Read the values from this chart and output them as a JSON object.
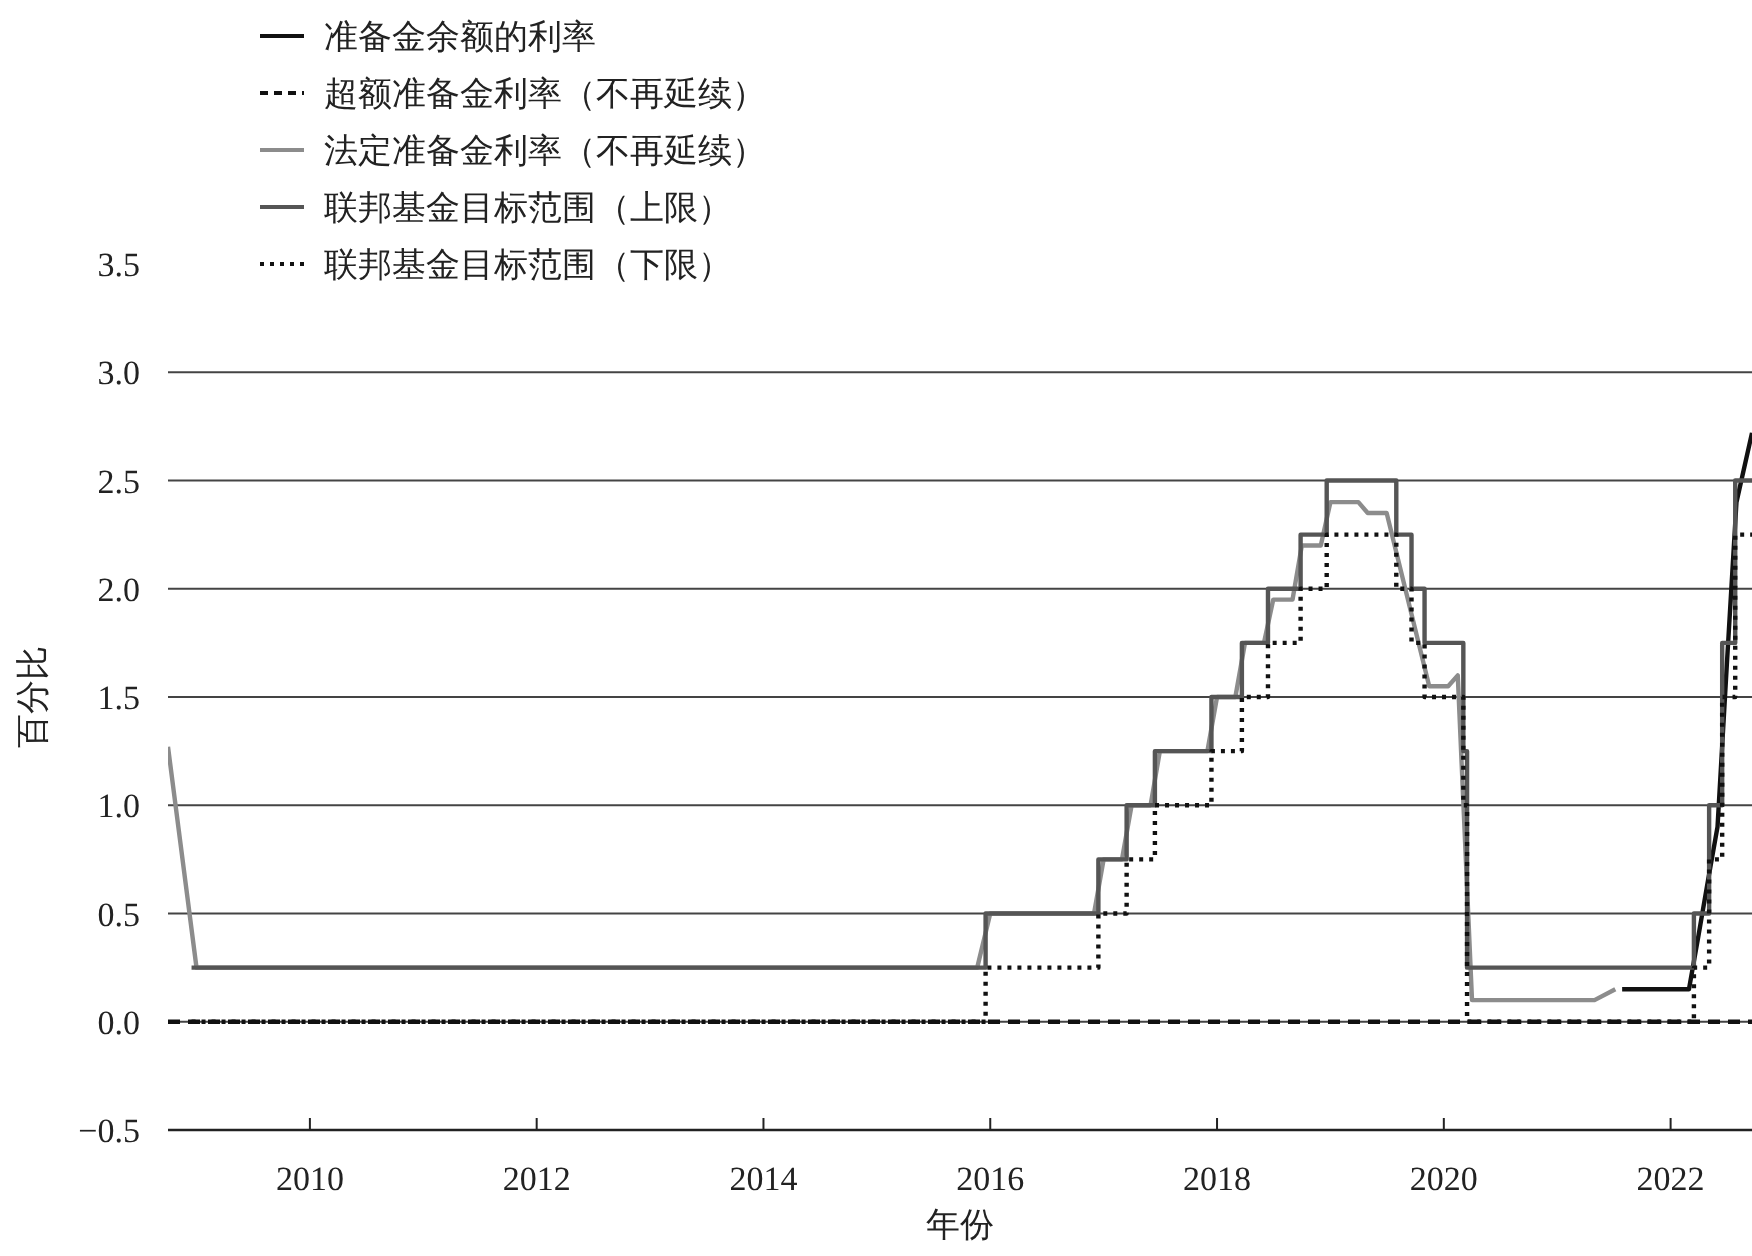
{
  "chart_data": {
    "type": "line",
    "xlabel": "年份",
    "ylabel": "百分比",
    "xlim": [
      "2008-10-01",
      "2022-09-20"
    ],
    "xticks": [
      "2010",
      "2012",
      "2014",
      "2016",
      "2018",
      "2020",
      "2022"
    ],
    "ylim": [
      -0.5,
      3.5
    ],
    "yticks": [
      {
        "value": -0.5,
        "label": "−0.5"
      },
      {
        "value": 0,
        "label": "0.0"
      },
      {
        "value": 0.5,
        "label": "0.5"
      },
      {
        "value": 1,
        "label": "1.0"
      },
      {
        "value": 1.5,
        "label": "1.5"
      },
      {
        "value": 2,
        "label": "2.0"
      },
      {
        "value": 2.5,
        "label": "2.5"
      },
      {
        "value": 3,
        "label": "3.0"
      },
      {
        "value": 3.5,
        "label": "3.5"
      }
    ],
    "grid": "y",
    "legend": "top left",
    "series": [
      {
        "name": "准备金余额的利率",
        "color": "#111111",
        "line_style": "solid",
        "x": [
          "2021-07-29",
          "2022-03-01",
          "2022-04-01",
          "2022-05-01",
          "2022-06-01",
          "2022-07-01",
          "2022-08-01",
          "2022-09-20"
        ],
        "values": [
          0.15,
          0.15,
          0.4,
          0.65,
          0.9,
          1.65,
          2.4,
          2.72
        ]
      },
      {
        "name": "超额准备金利率（不再延续）",
        "color": "#111111",
        "line_style": "dashed",
        "x": [
          "2008-10-01",
          "2022-09-20"
        ],
        "values": [
          0,
          0
        ]
      },
      {
        "name": "法定准备金利率（不再延续）",
        "color": "#8c8c8c",
        "line_style": "solid",
        "x": [
          "2008-10-01",
          "2009-01-01",
          "2015-11-20",
          "2016-01-01",
          "2016-12-01",
          "2017-01-01",
          "2017-03-01",
          "2017-04-01",
          "2017-06-01",
          "2017-07-01",
          "2017-12-01",
          "2018-01-01",
          "2018-03-01",
          "2018-04-01",
          "2018-06-01",
          "2018-07-01",
          "2018-09-01",
          "2018-10-01",
          "2018-12-01",
          "2019-01-01",
          "2019-04-01",
          "2019-05-01",
          "2019-07-01",
          "2019-11-15",
          "2020-01-15",
          "2020-02-15",
          "2020-04-01",
          "2021-05-01",
          "2021-07-07"
        ],
        "values": [
          1.27,
          0.25,
          0.25,
          0.5,
          0.5,
          0.75,
          0.75,
          1.0,
          1.0,
          1.25,
          1.25,
          1.5,
          1.5,
          1.75,
          1.75,
          1.95,
          1.95,
          2.2,
          2.2,
          2.4,
          2.4,
          2.35,
          2.35,
          1.55,
          1.55,
          1.6,
          0.1,
          0.1,
          0.15
        ]
      },
      {
        "name": "联邦基金目标范围（上限）",
        "type": "step",
        "color": "#555555",
        "line_style": "solid",
        "x": [
          "2008-12-16",
          "2015-12-17",
          "2016-12-15",
          "2017-03-16",
          "2017-06-15",
          "2017-12-14",
          "2018-03-22",
          "2018-06-14",
          "2018-09-27",
          "2018-12-20",
          "2019-08-01",
          "2019-09-19",
          "2019-10-31",
          "2020-03-04",
          "2020-03-16",
          "2022-03-17",
          "2022-05-05",
          "2022-06-16",
          "2022-07-28",
          "2022-09-20"
        ],
        "values": [
          0.25,
          0.5,
          0.75,
          1.0,
          1.25,
          1.5,
          1.75,
          2.0,
          2.25,
          2.5,
          2.25,
          2.0,
          1.75,
          1.25,
          0.25,
          0.5,
          1.0,
          1.75,
          2.5,
          2.5
        ]
      },
      {
        "name": "联邦基金目标范围（下限）",
        "type": "step",
        "color": "#111111",
        "line_style": "dotted",
        "x": [
          "2008-12-16",
          "2015-12-17",
          "2016-12-15",
          "2017-03-16",
          "2017-06-15",
          "2017-12-14",
          "2018-03-22",
          "2018-06-14",
          "2018-09-27",
          "2018-12-20",
          "2019-08-01",
          "2019-09-19",
          "2019-10-31",
          "2020-03-04",
          "2020-03-16",
          "2022-03-17",
          "2022-05-05",
          "2022-06-16",
          "2022-07-28",
          "2022-09-20"
        ],
        "values": [
          0,
          0.25,
          0.5,
          0.75,
          1.0,
          1.25,
          1.5,
          1.75,
          2.0,
          2.25,
          2.0,
          1.75,
          1.5,
          1.0,
          0,
          0.25,
          0.75,
          1.5,
          2.25,
          2.25
        ]
      }
    ]
  }
}
